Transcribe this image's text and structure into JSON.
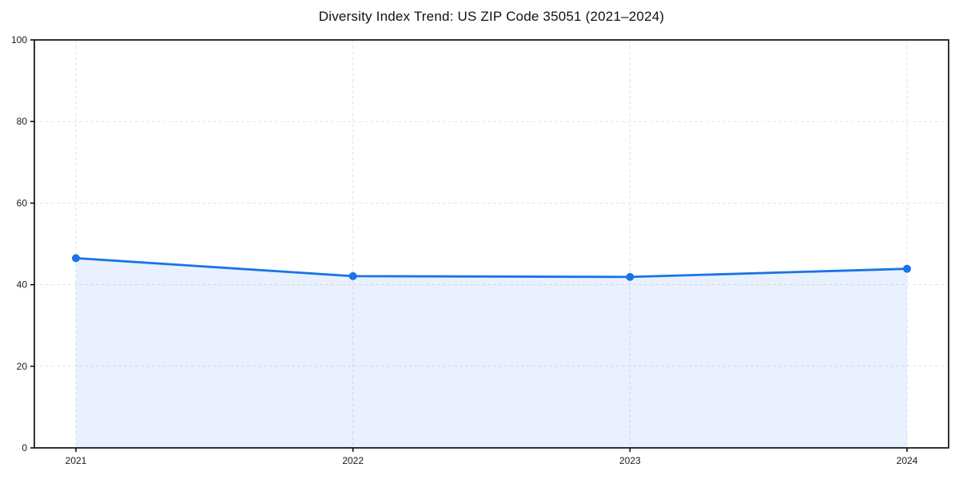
{
  "chart_data": {
    "type": "line",
    "title": "Diversity Index Trend: US ZIP Code 35051 (2021–2024)",
    "categories": [
      "2021",
      "2022",
      "2023",
      "2024"
    ],
    "series": [
      {
        "name": "Diversity Index",
        "values": [
          46.5,
          42.1,
          41.9,
          43.9
        ]
      }
    ],
    "xlabel": "",
    "ylabel": "",
    "ylim": [
      0,
      100
    ],
    "yticks": [
      0,
      20,
      40,
      60,
      80,
      100
    ],
    "grid": true,
    "grid_style": "dashed",
    "legend": "none",
    "area": true,
    "colors": {
      "line": "#1a73e8",
      "marker": "#1a73e8",
      "fill": "rgba(26,115,232,0.10)",
      "gridline": "#e3e3e3",
      "axis_border": "#000000",
      "tick_label": "#1a1a1a",
      "background": "#ffffff"
    }
  }
}
